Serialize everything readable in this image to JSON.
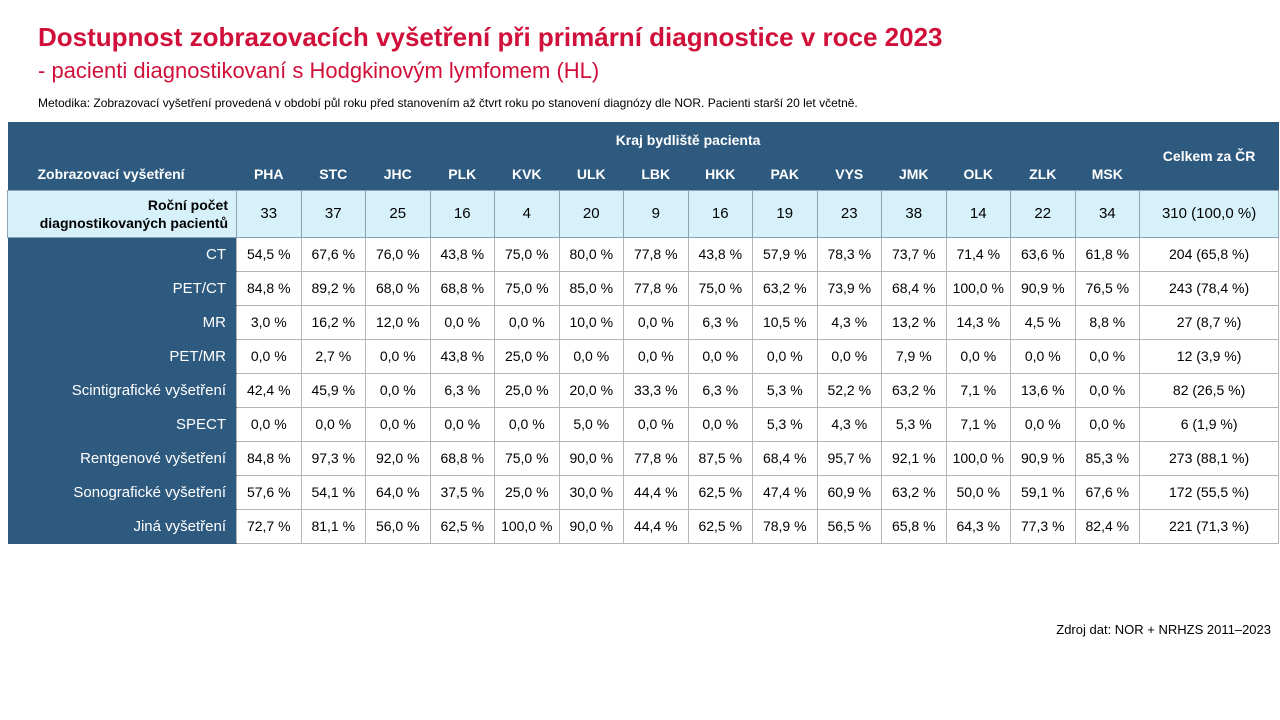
{
  "header": {
    "title": "Dostupnost zobrazovacích vyšetření při primární diagnostice v roce 2023",
    "subtitle": "- pacienti diagnostikovaní s Hodgkinovým lymfomem (HL)",
    "methodology": "Metodika: Zobrazovací vyšetření provedená v období půl roku před stanovením až čtvrt roku po stanovení diagnózy dle NOR. Pacienti starší 20 let včetně."
  },
  "table": {
    "corner": "Zobrazovací vyšetření",
    "group_header": "Kraj bydliště pacienta",
    "total_header": "Celkem za ČR",
    "regions": [
      "PHA",
      "STC",
      "JHC",
      "PLK",
      "KVK",
      "ULK",
      "LBK",
      "HKK",
      "PAK",
      "VYS",
      "JMK",
      "OLK",
      "ZLK",
      "MSK"
    ],
    "count_row": {
      "label": [
        "Roční počet",
        "diagnostikovaných pacientů"
      ],
      "values": [
        "33",
        "37",
        "25",
        "16",
        "4",
        "20",
        "9",
        "16",
        "19",
        "23",
        "38",
        "14",
        "22",
        "34"
      ],
      "total": "310 (100,0 %)"
    },
    "rows": [
      {
        "label": "CT",
        "cells": [
          "54,5 %",
          "67,6 %",
          "76,0 %",
          "43,8 %",
          "75,0 %",
          "80,0 %",
          "77,8 %",
          "43,8 %",
          "57,9 %",
          "78,3 %",
          "73,7 %",
          "71,4 %",
          "63,6 %",
          "61,8 %"
        ],
        "total": "204 (65,8 %)"
      },
      {
        "label": "PET/CT",
        "cells": [
          "84,8 %",
          "89,2 %",
          "68,0 %",
          "68,8 %",
          "75,0 %",
          "85,0 %",
          "77,8 %",
          "75,0 %",
          "63,2 %",
          "73,9 %",
          "68,4 %",
          "100,0 %",
          "90,9 %",
          "76,5 %"
        ],
        "total": "243 (78,4 %)"
      },
      {
        "label": "MR",
        "cells": [
          "3,0 %",
          "16,2 %",
          "12,0 %",
          "0,0 %",
          "0,0 %",
          "10,0 %",
          "0,0 %",
          "6,3 %",
          "10,5 %",
          "4,3 %",
          "13,2 %",
          "14,3 %",
          "4,5 %",
          "8,8 %"
        ],
        "total": "27 (8,7 %)"
      },
      {
        "label": "PET/MR",
        "cells": [
          "0,0 %",
          "2,7 %",
          "0,0 %",
          "43,8 %",
          "25,0 %",
          "0,0 %",
          "0,0 %",
          "0,0 %",
          "0,0 %",
          "0,0 %",
          "7,9 %",
          "0,0 %",
          "0,0 %",
          "0,0 %"
        ],
        "total": "12 (3,9 %)"
      },
      {
        "label": "Scintigrafické vyšetření",
        "cells": [
          "42,4 %",
          "45,9 %",
          "0,0 %",
          "6,3 %",
          "25,0 %",
          "20,0 %",
          "33,3 %",
          "6,3 %",
          "5,3 %",
          "52,2 %",
          "63,2 %",
          "7,1 %",
          "13,6 %",
          "0,0 %"
        ],
        "total": "82 (26,5 %)"
      },
      {
        "label": "SPECT",
        "cells": [
          "0,0 %",
          "0,0 %",
          "0,0 %",
          "0,0 %",
          "0,0 %",
          "5,0 %",
          "0,0 %",
          "0,0 %",
          "5,3 %",
          "4,3 %",
          "5,3 %",
          "7,1 %",
          "0,0 %",
          "0,0 %"
        ],
        "total": "6 (1,9 %)"
      },
      {
        "label": "Rentgenové vyšetření",
        "cells": [
          "84,8 %",
          "97,3 %",
          "92,0 %",
          "68,8 %",
          "75,0 %",
          "90,0 %",
          "77,8 %",
          "87,5 %",
          "68,4 %",
          "95,7 %",
          "92,1 %",
          "100,0 %",
          "90,9 %",
          "85,3 %"
        ],
        "total": "273 (88,1 %)"
      },
      {
        "label": "Sonografické vyšetření",
        "cells": [
          "57,6 %",
          "54,1 %",
          "64,0 %",
          "37,5 %",
          "25,0 %",
          "30,0 %",
          "44,4 %",
          "62,5 %",
          "47,4 %",
          "60,9 %",
          "63,2 %",
          "50,0 %",
          "59,1 %",
          "67,6 %"
        ],
        "total": "172 (55,5 %)"
      },
      {
        "label": "Jiná vyšetření",
        "cells": [
          "72,7 %",
          "81,1 %",
          "56,0 %",
          "62,5 %",
          "100,0 %",
          "90,0 %",
          "44,4 %",
          "62,5 %",
          "78,9 %",
          "56,5 %",
          "65,8 %",
          "64,3 %",
          "77,3 %",
          "82,4 %"
        ],
        "total": "221 (71,3 %)"
      }
    ]
  },
  "source": "Zdroj dat: NOR + NRHZS 2011–2023"
}
